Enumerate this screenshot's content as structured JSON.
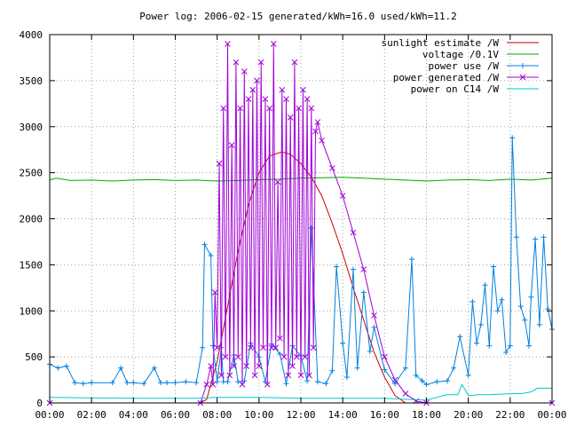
{
  "chart_data": {
    "type": "line",
    "title": "Power log: 2006-02-15 generated/kWh=16.0 used/kWh=11.2",
    "xlabel": "",
    "ylabel": "",
    "x_unit": "hour",
    "xlim": [
      0,
      24
    ],
    "ylim": [
      0,
      4000
    ],
    "grid": true,
    "legend_position": "top-right",
    "x_ticks": [
      {
        "value": 0,
        "label": "00:00"
      },
      {
        "value": 2,
        "label": "02:00"
      },
      {
        "value": 4,
        "label": "04:00"
      },
      {
        "value": 6,
        "label": "06:00"
      },
      {
        "value": 8,
        "label": "08:00"
      },
      {
        "value": 10,
        "label": "10:00"
      },
      {
        "value": 12,
        "label": "12:00"
      },
      {
        "value": 14,
        "label": "14:00"
      },
      {
        "value": 16,
        "label": "16:00"
      },
      {
        "value": 18,
        "label": "18:00"
      },
      {
        "value": 20,
        "label": "20:00"
      },
      {
        "value": 22,
        "label": "22:00"
      },
      {
        "value": 24,
        "label": "00:00"
      }
    ],
    "y_ticks": [
      {
        "value": 0,
        "label": "0"
      },
      {
        "value": 500,
        "label": "500"
      },
      {
        "value": 1000,
        "label": "1000"
      },
      {
        "value": 1500,
        "label": "1500"
      },
      {
        "value": 2000,
        "label": "2000"
      },
      {
        "value": 2500,
        "label": "2500"
      },
      {
        "value": 3000,
        "label": "3000"
      },
      {
        "value": 3500,
        "label": "3500"
      },
      {
        "value": 4000,
        "label": "4000"
      }
    ],
    "series": [
      {
        "name": "sunlight estimate /W",
        "color": "#cc0000",
        "marker": "none",
        "x": [
          0,
          7.2,
          7.5,
          8,
          8.5,
          9,
          9.5,
          10,
          10.5,
          11,
          11.2,
          11.5,
          12,
          12.5,
          13,
          13.5,
          14,
          14.5,
          15,
          15.5,
          16,
          16.5,
          17,
          24
        ],
        "y": [
          0,
          0,
          40,
          450,
          1050,
          1650,
          2150,
          2500,
          2680,
          2720,
          2720,
          2700,
          2600,
          2450,
          2250,
          1950,
          1620,
          1250,
          900,
          550,
          280,
          80,
          0,
          0
        ]
      },
      {
        "name": "voltage /0.1V",
        "color": "#00aa00",
        "marker": "none",
        "x": [
          0,
          0.3,
          1,
          2,
          3,
          4,
          5,
          6,
          7,
          8,
          9,
          10,
          11,
          12,
          13,
          14,
          15,
          16,
          17,
          18,
          19,
          20,
          21,
          22,
          23,
          24
        ],
        "y": [
          2420,
          2440,
          2415,
          2420,
          2410,
          2420,
          2425,
          2415,
          2420,
          2410,
          2415,
          2425,
          2430,
          2440,
          2445,
          2450,
          2440,
          2430,
          2420,
          2410,
          2420,
          2425,
          2415,
          2430,
          2420,
          2440
        ]
      },
      {
        "name": "power use /W",
        "color": "#0080e0",
        "marker": "plus",
        "x": [
          0,
          0.4,
          0.8,
          1.2,
          1.6,
          2.0,
          3.0,
          3.4,
          3.7,
          4.0,
          4.5,
          5.0,
          5.3,
          5.6,
          6.0,
          6.5,
          7.0,
          7.3,
          7.4,
          7.7,
          7.8,
          8.0,
          8.2,
          8.3,
          8.5,
          8.8,
          9.0,
          9.3,
          9.6,
          10.0,
          10.3,
          10.6,
          11.0,
          11.3,
          11.6,
          12.0,
          12.3,
          12.5,
          12.8,
          13.2,
          13.5,
          13.7,
          14.0,
          14.2,
          14.5,
          14.7,
          15.0,
          15.3,
          15.5,
          16.0,
          16.5,
          17.0,
          17.3,
          17.5,
          17.8,
          18.0,
          18.5,
          19.0,
          19.3,
          19.6,
          20.0,
          20.2,
          20.4,
          20.6,
          20.8,
          21.0,
          21.2,
          21.4,
          21.6,
          21.8,
          22.0,
          22.1,
          22.3,
          22.5,
          22.7,
          22.9,
          23.0,
          23.2,
          23.4,
          23.6,
          23.8,
          24.0
        ],
        "y": [
          420,
          380,
          400,
          220,
          210,
          220,
          220,
          380,
          220,
          220,
          210,
          380,
          220,
          220,
          220,
          230,
          220,
          600,
          1720,
          1600,
          620,
          230,
          600,
          230,
          230,
          520,
          230,
          240,
          650,
          500,
          230,
          640,
          530,
          210,
          620,
          510,
          240,
          1900,
          230,
          210,
          350,
          1480,
          650,
          280,
          1450,
          380,
          1200,
          560,
          820,
          360,
          210,
          380,
          1560,
          300,
          240,
          200,
          230,
          240,
          380,
          720,
          300,
          1100,
          650,
          850,
          1280,
          620,
          1480,
          1000,
          1120,
          550,
          620,
          2880,
          1800,
          1050,
          900,
          620,
          1150,
          1780,
          850,
          1800,
          1020,
          800
        ]
      },
      {
        "name": "power generated /W",
        "color": "#a000d8",
        "marker": "x",
        "x": [
          0,
          7.2,
          7.5,
          7.7,
          7.8,
          7.9,
          8.0,
          8.1,
          8.2,
          8.3,
          8.4,
          8.5,
          8.6,
          8.7,
          8.8,
          8.9,
          9.0,
          9.1,
          9.2,
          9.3,
          9.4,
          9.5,
          9.6,
          9.7,
          9.8,
          9.9,
          10.0,
          10.1,
          10.2,
          10.3,
          10.4,
          10.5,
          10.6,
          10.7,
          10.8,
          10.9,
          11.0,
          11.1,
          11.2,
          11.3,
          11.4,
          11.5,
          11.6,
          11.7,
          11.8,
          11.9,
          12.0,
          12.1,
          12.2,
          12.3,
          12.4,
          12.5,
          12.6,
          12.7,
          12.8,
          13.0,
          13.5,
          14.0,
          14.5,
          15.0,
          15.5,
          16.0,
          16.5,
          17.0,
          17.5,
          18.0,
          24.0
        ],
        "y": [
          0,
          0,
          200,
          400,
          200,
          1200,
          600,
          2600,
          300,
          3200,
          500,
          3900,
          300,
          2800,
          400,
          3700,
          500,
          3200,
          200,
          3600,
          400,
          3300,
          600,
          3400,
          300,
          3500,
          400,
          3700,
          600,
          3300,
          200,
          3200,
          600,
          3900,
          600,
          2400,
          700,
          3400,
          500,
          3300,
          300,
          3100,
          400,
          3700,
          500,
          3200,
          300,
          3400,
          500,
          3300,
          300,
          3200,
          600,
          2950,
          3050,
          2850,
          2550,
          2250,
          1850,
          1450,
          950,
          500,
          250,
          100,
          20,
          0,
          0
        ]
      },
      {
        "name": "power on C14 /W",
        "color": "#00c8c8",
        "marker": "none",
        "x": [
          0,
          4,
          7,
          8,
          10,
          12,
          14,
          16,
          18,
          18.8,
          19,
          19.5,
          19.7,
          20,
          20.5,
          21,
          21.5,
          22,
          22.5,
          23,
          23.3,
          24
        ],
        "y": [
          60,
          50,
          50,
          60,
          60,
          50,
          50,
          50,
          30,
          80,
          90,
          90,
          200,
          80,
          90,
          90,
          95,
          100,
          100,
          120,
          160,
          160
        ]
      }
    ]
  }
}
